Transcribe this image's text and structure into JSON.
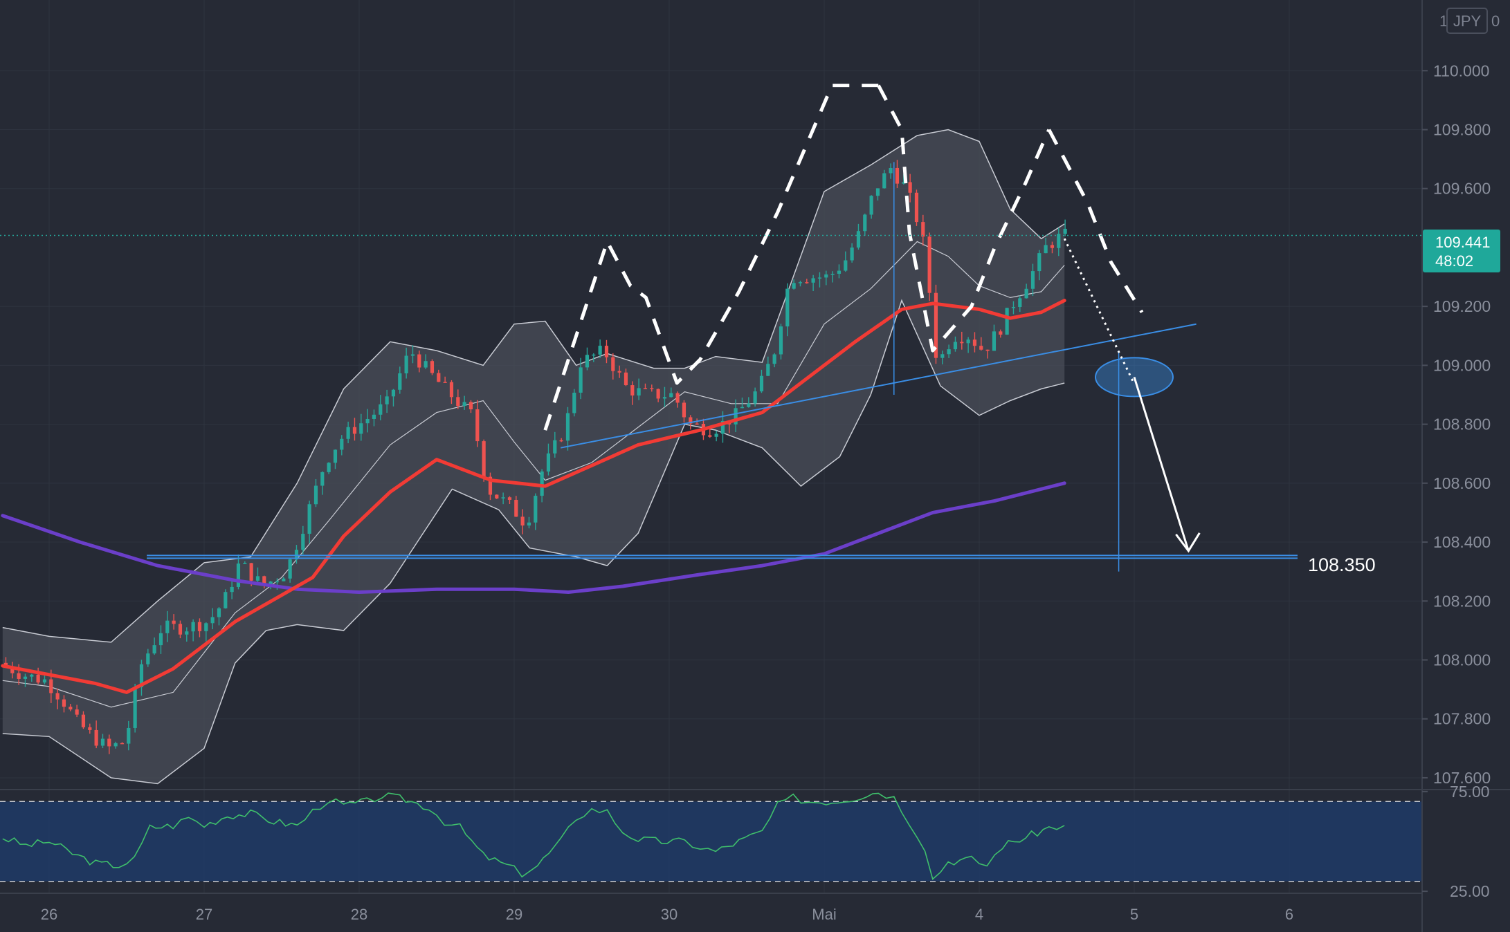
{
  "app": {
    "currency_badge": "JPY",
    "badge_prefix": "1",
    "badge_suffix": "0"
  },
  "colors": {
    "background": "#262a35",
    "grid": "#2f3440",
    "bull": "#26a69a",
    "bear": "#ef5350",
    "ema_fast": "#f23b35",
    "ema_slow": "#6b3fc9",
    "bands_fill": "#4a4e58",
    "bands_line": "#c9ccd4",
    "trendline": "#3a8ee6",
    "pattern": "#ffffff",
    "rsi_fill": "#1f3a66",
    "rsi_line": "#3fbf6b",
    "price_tag": "#1fa89a"
  },
  "chart_data": {
    "type": "candlestick",
    "symbol": "JPY",
    "timeframe_note": "hourly candles with indicators",
    "x_axis": {
      "labels": [
        "26",
        "27",
        "28",
        "29",
        "30",
        "Mai",
        "4",
        "5",
        "6"
      ],
      "range_days": [
        25.7,
        6.85
      ]
    },
    "y_axis": {
      "ticks": [
        "110.000",
        "109.800",
        "109.600",
        "109.200",
        "109.000",
        "108.800",
        "108.600",
        "108.400",
        "108.200",
        "108.000",
        "107.800",
        "107.600"
      ],
      "ylim": [
        107.56,
        110.24
      ]
    },
    "current_price": {
      "value": "109.441",
      "countdown": "48:02"
    },
    "support_level": {
      "value": 108.35,
      "label": "108.350"
    },
    "ema_fast_points": [
      [
        25.7,
        107.98
      ],
      [
        26.3,
        107.92
      ],
      [
        26.5,
        107.89
      ],
      [
        26.8,
        107.97
      ],
      [
        27.0,
        108.05
      ],
      [
        27.2,
        108.13
      ],
      [
        27.5,
        108.22
      ],
      [
        27.7,
        108.28
      ],
      [
        27.9,
        108.42
      ],
      [
        28.2,
        108.57
      ],
      [
        28.5,
        108.68
      ],
      [
        28.85,
        108.61
      ],
      [
        29.2,
        108.59
      ],
      [
        29.5,
        108.66
      ],
      [
        29.8,
        108.73
      ],
      [
        30.2,
        108.78
      ],
      [
        30.6,
        108.84
      ],
      [
        30.9,
        108.96
      ],
      [
        31.2,
        109.08
      ],
      [
        31.5,
        109.19
      ],
      [
        31.7,
        109.21
      ],
      [
        32.0,
        109.19
      ],
      [
        32.2,
        109.16
      ],
      [
        32.4,
        109.18
      ],
      [
        32.55,
        109.22
      ]
    ],
    "ema_slow_points": [
      [
        25.7,
        108.49
      ],
      [
        26.2,
        108.4
      ],
      [
        26.7,
        108.32
      ],
      [
        27.2,
        108.27
      ],
      [
        27.6,
        108.24
      ],
      [
        28.0,
        108.23
      ],
      [
        28.5,
        108.24
      ],
      [
        29.0,
        108.24
      ],
      [
        29.35,
        108.23
      ],
      [
        29.7,
        108.25
      ],
      [
        30.2,
        108.29
      ],
      [
        30.6,
        108.32
      ],
      [
        31.0,
        108.36
      ],
      [
        31.4,
        108.44
      ],
      [
        31.7,
        108.5
      ],
      [
        32.1,
        108.54
      ],
      [
        32.55,
        108.6
      ]
    ],
    "bollinger_upper": [
      [
        25.7,
        108.11
      ],
      [
        26.0,
        108.08
      ],
      [
        26.4,
        108.06
      ],
      [
        26.7,
        108.2
      ],
      [
        27.0,
        108.33
      ],
      [
        27.3,
        108.35
      ],
      [
        27.6,
        108.6
      ],
      [
        27.9,
        108.92
      ],
      [
        28.2,
        109.08
      ],
      [
        28.5,
        109.05
      ],
      [
        28.8,
        109.0
      ],
      [
        29.0,
        109.14
      ],
      [
        29.2,
        109.15
      ],
      [
        29.4,
        109.0
      ],
      [
        29.6,
        109.04
      ],
      [
        29.9,
        108.99
      ],
      [
        30.1,
        108.99
      ],
      [
        30.3,
        109.03
      ],
      [
        30.6,
        109.01
      ],
      [
        30.8,
        109.3
      ],
      [
        31.0,
        109.59
      ],
      [
        31.3,
        109.68
      ],
      [
        31.6,
        109.78
      ],
      [
        31.8,
        109.8
      ],
      [
        32.0,
        109.76
      ],
      [
        32.2,
        109.53
      ],
      [
        32.4,
        109.43
      ],
      [
        32.55,
        109.48
      ]
    ],
    "bollinger_lower": [
      [
        25.7,
        107.75
      ],
      [
        26.0,
        107.74
      ],
      [
        26.4,
        107.6
      ],
      [
        26.7,
        107.58
      ],
      [
        27.0,
        107.7
      ],
      [
        27.2,
        107.99
      ],
      [
        27.4,
        108.1
      ],
      [
        27.6,
        108.12
      ],
      [
        27.9,
        108.1
      ],
      [
        28.2,
        108.26
      ],
      [
        28.4,
        108.42
      ],
      [
        28.6,
        108.58
      ],
      [
        28.9,
        108.51
      ],
      [
        29.1,
        108.38
      ],
      [
        29.4,
        108.35
      ],
      [
        29.6,
        108.32
      ],
      [
        29.8,
        108.43
      ],
      [
        30.1,
        108.8
      ],
      [
        30.3,
        108.78
      ],
      [
        30.6,
        108.72
      ],
      [
        30.85,
        108.59
      ],
      [
        31.1,
        108.69
      ],
      [
        31.3,
        108.9
      ],
      [
        31.5,
        109.22
      ],
      [
        31.75,
        108.93
      ],
      [
        32.0,
        108.83
      ],
      [
        32.2,
        108.88
      ],
      [
        32.4,
        108.92
      ],
      [
        32.55,
        108.94
      ]
    ],
    "bollinger_mid": [
      [
        25.7,
        107.93
      ],
      [
        26.0,
        107.91
      ],
      [
        26.4,
        107.84
      ],
      [
        26.8,
        107.89
      ],
      [
        27.2,
        108.16
      ],
      [
        27.5,
        108.28
      ],
      [
        27.8,
        108.47
      ],
      [
        28.2,
        108.73
      ],
      [
        28.5,
        108.84
      ],
      [
        28.8,
        108.88
      ],
      [
        29.0,
        108.74
      ],
      [
        29.2,
        108.61
      ],
      [
        29.5,
        108.67
      ],
      [
        29.8,
        108.79
      ],
      [
        30.1,
        108.91
      ],
      [
        30.4,
        108.87
      ],
      [
        30.7,
        108.87
      ],
      [
        31.0,
        109.14
      ],
      [
        31.3,
        109.26
      ],
      [
        31.6,
        109.42
      ],
      [
        31.8,
        109.37
      ],
      [
        32.0,
        109.27
      ],
      [
        32.2,
        109.23
      ],
      [
        32.4,
        109.25
      ],
      [
        32.55,
        109.34
      ]
    ],
    "price_path": [
      [
        25.7,
        107.99
      ],
      [
        25.85,
        107.95
      ],
      [
        26.0,
        107.93
      ],
      [
        26.1,
        107.87
      ],
      [
        26.2,
        107.79
      ],
      [
        26.3,
        107.74
      ],
      [
        26.4,
        107.7
      ],
      [
        26.5,
        107.72
      ],
      [
        26.55,
        107.8
      ],
      [
        26.6,
        107.97
      ],
      [
        26.75,
        108.11
      ],
      [
        26.9,
        108.11
      ],
      [
        27.05,
        108.13
      ],
      [
        27.15,
        108.2
      ],
      [
        27.25,
        108.33
      ],
      [
        27.4,
        108.25
      ],
      [
        27.55,
        108.3
      ],
      [
        27.65,
        108.44
      ],
      [
        27.8,
        108.67
      ],
      [
        27.9,
        108.75
      ],
      [
        28.05,
        108.81
      ],
      [
        28.2,
        108.87
      ],
      [
        28.35,
        109.05
      ],
      [
        28.5,
        108.96
      ],
      [
        28.65,
        108.88
      ],
      [
        28.75,
        108.83
      ],
      [
        28.85,
        108.58
      ],
      [
        29.0,
        108.52
      ],
      [
        29.1,
        108.46
      ],
      [
        29.2,
        108.64
      ],
      [
        29.35,
        108.79
      ],
      [
        29.45,
        109.01
      ],
      [
        29.6,
        109.05
      ],
      [
        29.75,
        108.92
      ],
      [
        29.9,
        108.9
      ],
      [
        30.05,
        108.9
      ],
      [
        30.15,
        108.8
      ],
      [
        30.3,
        108.78
      ],
      [
        30.45,
        108.83
      ],
      [
        30.6,
        108.92
      ],
      [
        30.7,
        109.05
      ],
      [
        30.8,
        109.3
      ],
      [
        30.95,
        109.3
      ],
      [
        31.05,
        109.3
      ],
      [
        31.15,
        109.35
      ],
      [
        31.25,
        109.45
      ],
      [
        31.35,
        109.6
      ],
      [
        31.45,
        109.67
      ],
      [
        31.55,
        109.6
      ],
      [
        31.65,
        109.45
      ],
      [
        31.7,
        109.25
      ],
      [
        31.75,
        109.0
      ],
      [
        31.85,
        109.1
      ],
      [
        31.95,
        109.1
      ],
      [
        32.05,
        109.05
      ],
      [
        32.15,
        109.12
      ],
      [
        32.25,
        109.22
      ],
      [
        32.35,
        109.3
      ],
      [
        32.45,
        109.4
      ],
      [
        32.55,
        109.44
      ]
    ],
    "rsi": {
      "ticks": [
        "75.00",
        "25.00"
      ],
      "overbought": 70,
      "oversold": 30,
      "ylim": [
        24,
        76
      ],
      "values": [
        [
          25.7,
          52
        ],
        [
          25.85,
          48
        ],
        [
          26.0,
          50
        ],
        [
          26.15,
          44
        ],
        [
          26.3,
          39
        ],
        [
          26.45,
          38
        ],
        [
          26.55,
          41
        ],
        [
          26.65,
          57
        ],
        [
          26.8,
          58
        ],
        [
          26.9,
          62
        ],
        [
          27.0,
          58
        ],
        [
          27.15,
          63
        ],
        [
          27.3,
          64
        ],
        [
          27.45,
          60
        ],
        [
          27.6,
          58
        ],
        [
          27.7,
          65
        ],
        [
          27.8,
          71
        ],
        [
          27.9,
          68
        ],
        [
          28.05,
          70
        ],
        [
          28.15,
          73
        ],
        [
          28.3,
          71
        ],
        [
          28.45,
          67
        ],
        [
          28.55,
          60
        ],
        [
          28.65,
          57
        ],
        [
          28.8,
          43
        ],
        [
          28.95,
          38
        ],
        [
          29.05,
          34
        ],
        [
          29.15,
          38
        ],
        [
          29.3,
          50
        ],
        [
          29.4,
          62
        ],
        [
          29.5,
          66
        ],
        [
          29.6,
          65
        ],
        [
          29.7,
          55
        ],
        [
          29.8,
          51
        ],
        [
          29.95,
          50
        ],
        [
          30.1,
          50
        ],
        [
          30.2,
          47
        ],
        [
          30.3,
          45
        ],
        [
          30.45,
          50
        ],
        [
          30.6,
          55
        ],
        [
          30.7,
          68
        ],
        [
          30.8,
          72
        ],
        [
          30.9,
          70
        ],
        [
          31.05,
          70
        ],
        [
          31.2,
          72
        ],
        [
          31.35,
          75
        ],
        [
          31.45,
          72
        ],
        [
          31.55,
          60
        ],
        [
          31.65,
          47
        ],
        [
          31.7,
          31
        ],
        [
          31.8,
          40
        ],
        [
          31.95,
          41
        ],
        [
          32.05,
          38
        ],
        [
          32.15,
          48
        ],
        [
          32.3,
          52
        ],
        [
          32.45,
          57
        ],
        [
          32.55,
          58
        ]
      ]
    },
    "annotations": {
      "pattern_zigzags": [
        [
          [
            29.2,
            108.78
          ],
          [
            29.6,
            109.42
          ],
          [
            29.75,
            109.27
          ],
          [
            29.85,
            109.23
          ],
          [
            30.05,
            108.94
          ],
          [
            30.2,
            109.02
          ],
          [
            30.45,
            109.25
          ],
          [
            30.7,
            109.52
          ],
          [
            31.05,
            109.95
          ],
          [
            31.35,
            109.95
          ]
        ],
        [
          [
            31.35,
            109.95
          ],
          [
            31.5,
            109.8
          ],
          [
            31.55,
            109.45
          ],
          [
            31.7,
            109.05
          ],
          [
            31.95,
            109.2
          ],
          [
            32.1,
            109.4
          ],
          [
            32.3,
            109.62
          ],
          [
            32.45,
            109.8
          ]
        ],
        [
          [
            32.45,
            109.8
          ],
          [
            32.55,
            109.7
          ],
          [
            32.7,
            109.55
          ],
          [
            32.85,
            109.35
          ],
          [
            33.05,
            109.18
          ]
        ]
      ],
      "neckline": [
        [
          29.3,
          108.72
        ],
        [
          33.4,
          109.14
        ]
      ],
      "target_circle": [
        33.0,
        108.96
      ],
      "target_arrow_start": [
        33.0,
        108.96
      ],
      "target_arrow_end": [
        33.35,
        108.37
      ],
      "dotted_path_start": [
        32.55,
        109.43
      ],
      "measurement_lines": [
        {
          "x": 31.45,
          "y_from": 109.69,
          "y_to": 108.9
        },
        {
          "x": 32.9,
          "y_from": 109.05,
          "y_to": 108.3
        }
      ]
    }
  }
}
